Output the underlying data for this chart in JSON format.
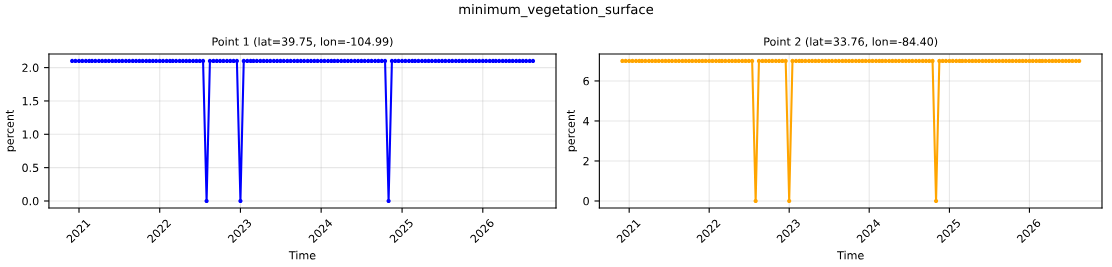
{
  "chart_data": [
    {
      "type": "line",
      "title": "Point 1 (lat=39.75, lon=-104.99)",
      "annotations": [
        "minimum_vegetation_surface"
      ],
      "xlabel": "Time",
      "ylabel": "percent",
      "x": [
        "2020-12-01",
        "2020-12-16",
        "2021-01-01",
        "2021-01-16",
        "2021-02-01",
        "2021-02-16",
        "2021-03-01",
        "2021-03-16",
        "2021-04-01",
        "2021-04-16",
        "2021-05-01",
        "2021-05-16",
        "2021-06-01",
        "2021-06-16",
        "2021-07-01",
        "2021-07-16",
        "2021-08-01",
        "2021-08-16",
        "2021-09-01",
        "2021-09-16",
        "2021-10-01",
        "2021-10-16",
        "2021-11-01",
        "2021-11-16",
        "2021-12-01",
        "2021-12-16",
        "2022-01-01",
        "2022-01-16",
        "2022-02-01",
        "2022-02-16",
        "2022-03-01",
        "2022-03-16",
        "2022-04-01",
        "2022-04-16",
        "2022-05-01",
        "2022-05-16",
        "2022-06-01",
        "2022-06-16",
        "2022-07-01",
        "2022-07-16",
        "2022-08-01",
        "2022-08-16",
        "2022-09-01",
        "2022-09-16",
        "2022-10-01",
        "2022-10-16",
        "2022-11-01",
        "2022-11-16",
        "2022-12-01",
        "2022-12-16",
        "2023-01-01",
        "2023-01-16",
        "2023-02-01",
        "2023-02-16",
        "2023-03-01",
        "2023-03-16",
        "2023-04-01",
        "2023-04-16",
        "2023-05-01",
        "2023-05-16",
        "2023-06-01",
        "2023-06-16",
        "2023-07-01",
        "2023-07-16",
        "2023-08-01",
        "2023-08-16",
        "2023-09-01",
        "2023-09-16",
        "2023-10-01",
        "2023-10-16",
        "2023-11-01",
        "2023-11-16",
        "2023-12-01",
        "2023-12-16",
        "2024-01-01",
        "2024-01-16",
        "2024-02-01",
        "2024-02-16",
        "2024-03-01",
        "2024-03-16",
        "2024-04-01",
        "2024-04-16",
        "2024-05-01",
        "2024-05-16",
        "2024-06-01",
        "2024-06-16",
        "2024-07-01",
        "2024-07-16",
        "2024-08-01",
        "2024-08-16",
        "2024-09-01",
        "2024-09-16",
        "2024-10-01",
        "2024-10-16",
        "2024-11-01",
        "2024-11-16",
        "2024-12-01",
        "2024-12-16",
        "2025-01-01",
        "2025-01-16",
        "2025-02-01",
        "2025-02-16",
        "2025-03-01",
        "2025-03-16",
        "2025-04-01",
        "2025-04-16",
        "2025-05-01",
        "2025-05-16",
        "2025-06-01",
        "2025-06-16",
        "2025-07-01",
        "2025-07-16",
        "2025-08-01",
        "2025-08-16",
        "2025-09-01",
        "2025-09-16",
        "2025-10-01",
        "2025-10-16",
        "2025-11-01",
        "2025-11-16",
        "2025-12-01",
        "2025-12-16",
        "2026-01-01",
        "2026-01-16",
        "2026-02-01",
        "2026-02-16",
        "2026-03-01",
        "2026-03-16",
        "2026-04-01",
        "2026-04-16",
        "2026-05-01",
        "2026-05-16",
        "2026-06-01",
        "2026-06-16",
        "2026-07-01",
        "2026-07-16",
        "2026-08-01",
        "2026-08-16"
      ],
      "series": [
        {
          "color": "#0000ff",
          "values": [
            2.1,
            2.1,
            2.1,
            2.1,
            2.1,
            2.1,
            2.1,
            2.1,
            2.1,
            2.1,
            2.1,
            2.1,
            2.1,
            2.1,
            2.1,
            2.1,
            2.1,
            2.1,
            2.1,
            2.1,
            2.1,
            2.1,
            2.1,
            2.1,
            2.1,
            2.1,
            2.1,
            2.1,
            2.1,
            2.1,
            2.1,
            2.1,
            2.1,
            2.1,
            2.1,
            2.1,
            2.1,
            2.1,
            2.1,
            2.1,
            0,
            2.1,
            2.1,
            2.1,
            2.1,
            2.1,
            2.1,
            2.1,
            2.1,
            2.1,
            0,
            2.1,
            2.1,
            2.1,
            2.1,
            2.1,
            2.1,
            2.1,
            2.1,
            2.1,
            2.1,
            2.1,
            2.1,
            2.1,
            2.1,
            2.1,
            2.1,
            2.1,
            2.1,
            2.1,
            2.1,
            2.1,
            2.1,
            2.1,
            2.1,
            2.1,
            2.1,
            2.1,
            2.1,
            2.1,
            2.1,
            2.1,
            2.1,
            2.1,
            2.1,
            2.1,
            2.1,
            2.1,
            2.1,
            2.1,
            2.1,
            2.1,
            2.1,
            2.1,
            0,
            2.1,
            2.1,
            2.1,
            2.1,
            2.1,
            2.1,
            2.1,
            2.1,
            2.1,
            2.1,
            2.1,
            2.1,
            2.1,
            2.1,
            2.1,
            2.1,
            2.1,
            2.1,
            2.1,
            2.1,
            2.1,
            2.1,
            2.1,
            2.1,
            2.1,
            2.1,
            2.1,
            2.1,
            2.1,
            2.1,
            2.1,
            2.1,
            2.1,
            2.1,
            2.1,
            2.1,
            2.1,
            2.1,
            2.1,
            2.1,
            2.1,
            2.1,
            2.1
          ]
        }
      ],
      "xlim": [
        "2020-08-18",
        "2026-11-28"
      ],
      "xticks": [
        "2021",
        "2022",
        "2023",
        "2024",
        "2025",
        "2026"
      ],
      "ylim": [
        -0.105,
        2.205
      ],
      "yticks": [
        {
          "value": 0,
          "label": "0.0"
        },
        {
          "value": 0.5,
          "label": "0.5"
        },
        {
          "value": 1,
          "label": "1.0"
        },
        {
          "value": 1.5,
          "label": "1.5"
        },
        {
          "value": 2,
          "label": "2.0"
        }
      ],
      "grid": true,
      "marker": "circle",
      "line_style": "solid",
      "legend": false
    },
    {
      "type": "line",
      "title": "Point 2 (lat=33.76, lon=-84.40)",
      "xlabel": "Time",
      "ylabel": "percent",
      "x": [
        "2020-12-01",
        "2020-12-16",
        "2021-01-01",
        "2021-01-16",
        "2021-02-01",
        "2021-02-16",
        "2021-03-01",
        "2021-03-16",
        "2021-04-01",
        "2021-04-16",
        "2021-05-01",
        "2021-05-16",
        "2021-06-01",
        "2021-06-16",
        "2021-07-01",
        "2021-07-16",
        "2021-08-01",
        "2021-08-16",
        "2021-09-01",
        "2021-09-16",
        "2021-10-01",
        "2021-10-16",
        "2021-11-01",
        "2021-11-16",
        "2021-12-01",
        "2021-12-16",
        "2022-01-01",
        "2022-01-16",
        "2022-02-01",
        "2022-02-16",
        "2022-03-01",
        "2022-03-16",
        "2022-04-01",
        "2022-04-16",
        "2022-05-01",
        "2022-05-16",
        "2022-06-01",
        "2022-06-16",
        "2022-07-01",
        "2022-07-16",
        "2022-08-01",
        "2022-08-16",
        "2022-09-01",
        "2022-09-16",
        "2022-10-01",
        "2022-10-16",
        "2022-11-01",
        "2022-11-16",
        "2022-12-01",
        "2022-12-16",
        "2023-01-01",
        "2023-01-16",
        "2023-02-01",
        "2023-02-16",
        "2023-03-01",
        "2023-03-16",
        "2023-04-01",
        "2023-04-16",
        "2023-05-01",
        "2023-05-16",
        "2023-06-01",
        "2023-06-16",
        "2023-07-01",
        "2023-07-16",
        "2023-08-01",
        "2023-08-16",
        "2023-09-01",
        "2023-09-16",
        "2023-10-01",
        "2023-10-16",
        "2023-11-01",
        "2023-11-16",
        "2023-12-01",
        "2023-12-16",
        "2024-01-01",
        "2024-01-16",
        "2024-02-01",
        "2024-02-16",
        "2024-03-01",
        "2024-03-16",
        "2024-04-01",
        "2024-04-16",
        "2024-05-01",
        "2024-05-16",
        "2024-06-01",
        "2024-06-16",
        "2024-07-01",
        "2024-07-16",
        "2024-08-01",
        "2024-08-16",
        "2024-09-01",
        "2024-09-16",
        "2024-10-01",
        "2024-10-16",
        "2024-11-01",
        "2024-11-16",
        "2024-12-01",
        "2024-12-16",
        "2025-01-01",
        "2025-01-16",
        "2025-02-01",
        "2025-02-16",
        "2025-03-01",
        "2025-03-16",
        "2025-04-01",
        "2025-04-16",
        "2025-05-01",
        "2025-05-16",
        "2025-06-01",
        "2025-06-16",
        "2025-07-01",
        "2025-07-16",
        "2025-08-01",
        "2025-08-16",
        "2025-09-01",
        "2025-09-16",
        "2025-10-01",
        "2025-10-16",
        "2025-11-01",
        "2025-11-16",
        "2025-12-01",
        "2025-12-16",
        "2026-01-01",
        "2026-01-16",
        "2026-02-01",
        "2026-02-16",
        "2026-03-01",
        "2026-03-16",
        "2026-04-01",
        "2026-04-16",
        "2026-05-01",
        "2026-05-16",
        "2026-06-01",
        "2026-06-16",
        "2026-07-01",
        "2026-07-16",
        "2026-08-01",
        "2026-08-16"
      ],
      "series": [
        {
          "color": "#ffa500",
          "values": [
            7,
            7,
            7,
            7,
            7,
            7,
            7,
            7,
            7,
            7,
            7,
            7,
            7,
            7,
            7,
            7,
            7,
            7,
            7,
            7,
            7,
            7,
            7,
            7,
            7,
            7,
            7,
            7,
            7,
            7,
            7,
            7,
            7,
            7,
            7,
            7,
            7,
            7,
            7,
            7,
            0,
            7,
            7,
            7,
            7,
            7,
            7,
            7,
            7,
            7,
            0,
            7,
            7,
            7,
            7,
            7,
            7,
            7,
            7,
            7,
            7,
            7,
            7,
            7,
            7,
            7,
            7,
            7,
            7,
            7,
            7,
            7,
            7,
            7,
            7,
            7,
            7,
            7,
            7,
            7,
            7,
            7,
            7,
            7,
            7,
            7,
            7,
            7,
            7,
            7,
            7,
            7,
            7,
            7,
            0,
            7,
            7,
            7,
            7,
            7,
            7,
            7,
            7,
            7,
            7,
            7,
            7,
            7,
            7,
            7,
            7,
            7,
            7,
            7,
            7,
            7,
            7,
            7,
            7,
            7,
            7,
            7,
            7,
            7,
            7,
            7,
            7,
            7,
            7,
            7,
            7,
            7,
            7,
            7,
            7,
            7,
            7,
            7
          ]
        }
      ],
      "xlim": [
        "2020-08-18",
        "2026-11-28"
      ],
      "xticks": [
        "2021",
        "2022",
        "2023",
        "2024",
        "2025",
        "2026"
      ],
      "ylim": [
        -0.35,
        7.35
      ],
      "yticks": [
        0,
        2,
        4,
        6
      ],
      "grid": true,
      "marker": "circle",
      "line_style": "solid",
      "legend": false
    }
  ]
}
